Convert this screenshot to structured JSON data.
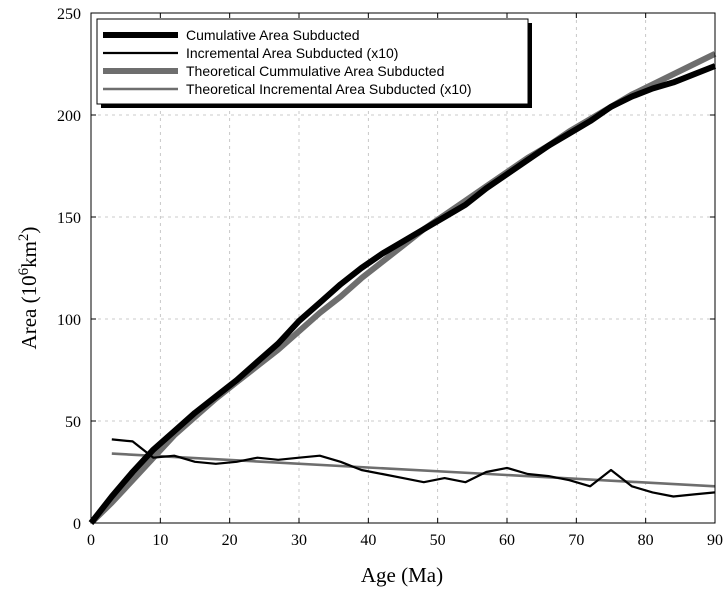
{
  "chart_data": {
    "type": "line",
    "xlabel": "Age (Ma)",
    "ylabel": {
      "prefix": "Area (10",
      "sup1": "6",
      "mid": "km",
      "sup2": "2",
      "suffix": ")"
    },
    "xlim": [
      0,
      90
    ],
    "ylim": [
      0,
      250
    ],
    "xticks": [
      0,
      10,
      20,
      30,
      40,
      50,
      60,
      70,
      80,
      90
    ],
    "yticks": [
      0,
      50,
      100,
      150,
      200,
      250
    ],
    "grid": true,
    "legend_position": "top-left",
    "series": [
      {
        "name": "Cumulative  Area Subducted",
        "color": "#000000",
        "style": "thick",
        "x": [
          0,
          3,
          6,
          9,
          12,
          15,
          18,
          21,
          24,
          27,
          30,
          33,
          36,
          39,
          42,
          45,
          48,
          51,
          54,
          57,
          60,
          63,
          66,
          69,
          72,
          75,
          78,
          81,
          84,
          87,
          90
        ],
        "y": [
          0,
          13,
          25,
          36,
          45,
          54,
          62,
          70,
          79,
          88,
          99,
          108,
          117,
          125,
          132,
          138,
          144,
          150,
          156,
          164,
          171,
          178,
          185,
          191,
          197,
          204,
          209,
          213,
          216,
          220,
          224
        ]
      },
      {
        "name": "Incremental Area Subducted (x10)",
        "color": "#000000",
        "style": "thin",
        "x": [
          3,
          6,
          9,
          12,
          15,
          18,
          21,
          24,
          27,
          30,
          33,
          36,
          39,
          42,
          45,
          48,
          51,
          54,
          57,
          60,
          63,
          66,
          69,
          72,
          75,
          78,
          81,
          84,
          87,
          90
        ],
        "y": [
          41,
          40,
          32,
          33,
          30,
          29,
          30,
          32,
          31,
          32,
          33,
          30,
          26,
          24,
          22,
          20,
          22,
          20,
          25,
          27,
          24,
          23,
          21,
          18,
          26,
          18,
          15,
          13,
          14,
          15
        ]
      },
      {
        "name": "Theoretical Cummulative Area Subducted",
        "color": "#6e6e6e",
        "style": "thick",
        "x": [
          0,
          3,
          6,
          9,
          12,
          15,
          18,
          21,
          24,
          27,
          30,
          33,
          36,
          39,
          42,
          45,
          48,
          51,
          54,
          57,
          60,
          63,
          66,
          69,
          72,
          75,
          78,
          81,
          84,
          87,
          90
        ],
        "y": [
          0,
          10,
          21,
          32,
          43,
          52,
          61,
          69,
          77,
          85,
          94,
          103,
          111,
          120,
          128,
          136,
          144,
          151,
          158,
          165,
          172,
          179,
          185,
          192,
          198,
          204,
          210,
          215,
          220,
          225,
          230
        ]
      },
      {
        "name": "Theoretical Incremental Area Subducted  (x10)",
        "color": "#6e6e6e",
        "style": "medium",
        "x": [
          3,
          90
        ],
        "y": [
          34,
          18
        ]
      }
    ]
  }
}
